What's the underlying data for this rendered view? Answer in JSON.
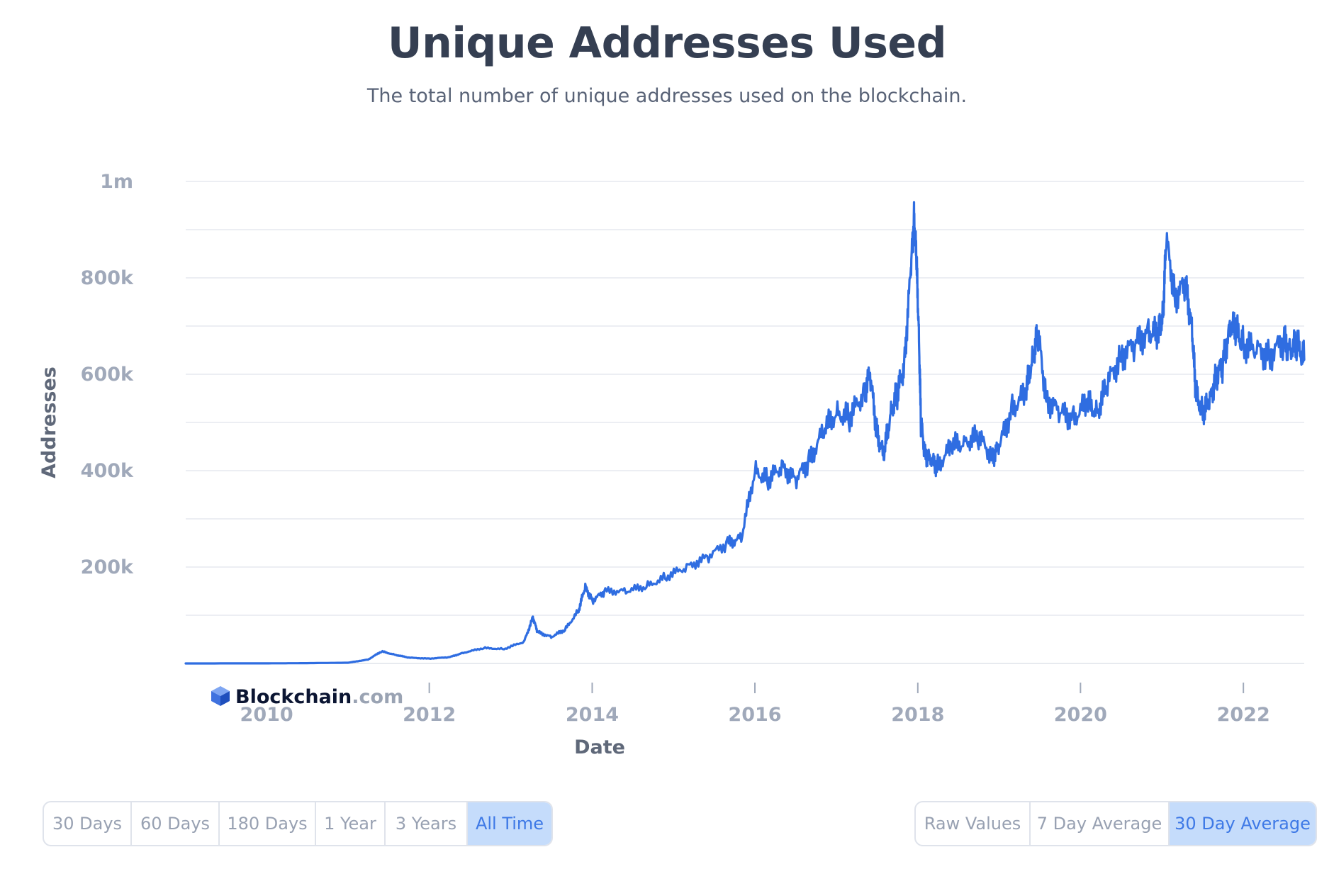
{
  "header": {
    "title": "Unique Addresses Used",
    "subtitle": "The total number of unique addresses used on the blockchain."
  },
  "logo": {
    "brand": "Blockchain",
    "suffix": ".com"
  },
  "chart_data": {
    "type": "line",
    "title": "Unique Addresses Used",
    "subtitle": "The total number of unique addresses used on the blockchain.",
    "xlabel": "Date",
    "ylabel": "Addresses",
    "x_tick_labels": [
      "2010",
      "2012",
      "2014",
      "2016",
      "2018",
      "2020",
      "2022"
    ],
    "y_tick_labels": [
      "200k",
      "400k",
      "600k",
      "800k",
      "1m"
    ],
    "y_tick_values": [
      200000,
      400000,
      600000,
      800000,
      1000000
    ],
    "ylim": [
      0,
      1000000
    ],
    "xlim": [
      "2009-01-03",
      "2022-10-01"
    ],
    "grid": true,
    "line_color": "#2f6de1",
    "series": [
      {
        "x": [
          "2009-01-03",
          "2010-01-01",
          "2010-06-01",
          "2011-01-01",
          "2011-04-01",
          "2011-06-01",
          "2011-08-01",
          "2011-10-01",
          "2012-01-01",
          "2012-04-01",
          "2012-06-01",
          "2012-09-01",
          "2012-12-01",
          "2013-03-01",
          "2013-04-10",
          "2013-05-01",
          "2013-07-01",
          "2013-09-01",
          "2013-11-01",
          "2013-12-01",
          "2014-01-01",
          "2014-03-01",
          "2014-06-01",
          "2014-09-01",
          "2014-12-01",
          "2015-03-01",
          "2015-06-01",
          "2015-09-01",
          "2015-11-01",
          "2016-01-01",
          "2016-03-01",
          "2016-05-01",
          "2016-07-01",
          "2016-09-01",
          "2016-11-01",
          "2017-01-01",
          "2017-03-01",
          "2017-05-01",
          "2017-06-01",
          "2017-07-01",
          "2017-08-01",
          "2017-09-01",
          "2017-10-01",
          "2017-11-01",
          "2017-12-01",
          "2017-12-15",
          "2017-12-25",
          "2018-01-05",
          "2018-01-15",
          "2018-02-01",
          "2018-03-01",
          "2018-04-01",
          "2018-06-01",
          "2018-08-01",
          "2018-10-01",
          "2018-12-01",
          "2019-01-01",
          "2019-03-01",
          "2019-05-01",
          "2019-06-01",
          "2019-06-25",
          "2019-08-01",
          "2019-10-01",
          "2019-12-01",
          "2020-02-01",
          "2020-03-15",
          "2020-05-01",
          "2020-07-01",
          "2020-09-01",
          "2020-11-01",
          "2020-12-15",
          "2021-01-05",
          "2021-01-20",
          "2021-03-01",
          "2021-04-15",
          "2021-05-15",
          "2021-06-01",
          "2021-07-01",
          "2021-08-01",
          "2021-09-01",
          "2021-10-01",
          "2021-11-01",
          "2021-12-01",
          "2022-01-01",
          "2022-03-01",
          "2022-05-01",
          "2022-07-01",
          "2022-08-01",
          "2022-09-01",
          "2022-10-01"
        ],
        "y": [
          0,
          200,
          500,
          1500,
          8000,
          25000,
          18000,
          12000,
          10000,
          13000,
          22000,
          32000,
          30000,
          45000,
          95000,
          65000,
          55000,
          70000,
          110000,
          160000,
          130000,
          150000,
          150000,
          160000,
          180000,
          200000,
          220000,
          250000,
          260000,
          400000,
          380000,
          410000,
          380000,
          420000,
          480000,
          520000,
          510000,
          560000,
          600000,
          480000,
          430000,
          520000,
          560000,
          620000,
          820000,
          920000,
          850000,
          700000,
          500000,
          440000,
          420000,
          410000,
          450000,
          460000,
          470000,
          430000,
          450000,
          530000,
          560000,
          640000,
          680000,
          550000,
          520000,
          510000,
          540000,
          520000,
          580000,
          640000,
          660000,
          690000,
          680000,
          720000,
          880000,
          760000,
          790000,
          700000,
          560000,
          520000,
          540000,
          600000,
          620000,
          700000,
          690000,
          660000,
          650000,
          640000,
          670000,
          650000,
          660000,
          630000
        ]
      }
    ]
  },
  "controls": {
    "range_buttons": [
      "30 Days",
      "60 Days",
      "180 Days",
      "1 Year",
      "3 Years",
      "All Time"
    ],
    "range_active": "All Time",
    "avg_buttons": [
      "Raw Values",
      "7 Day Average",
      "30 Day Average"
    ],
    "avg_active": "30 Day Average"
  }
}
